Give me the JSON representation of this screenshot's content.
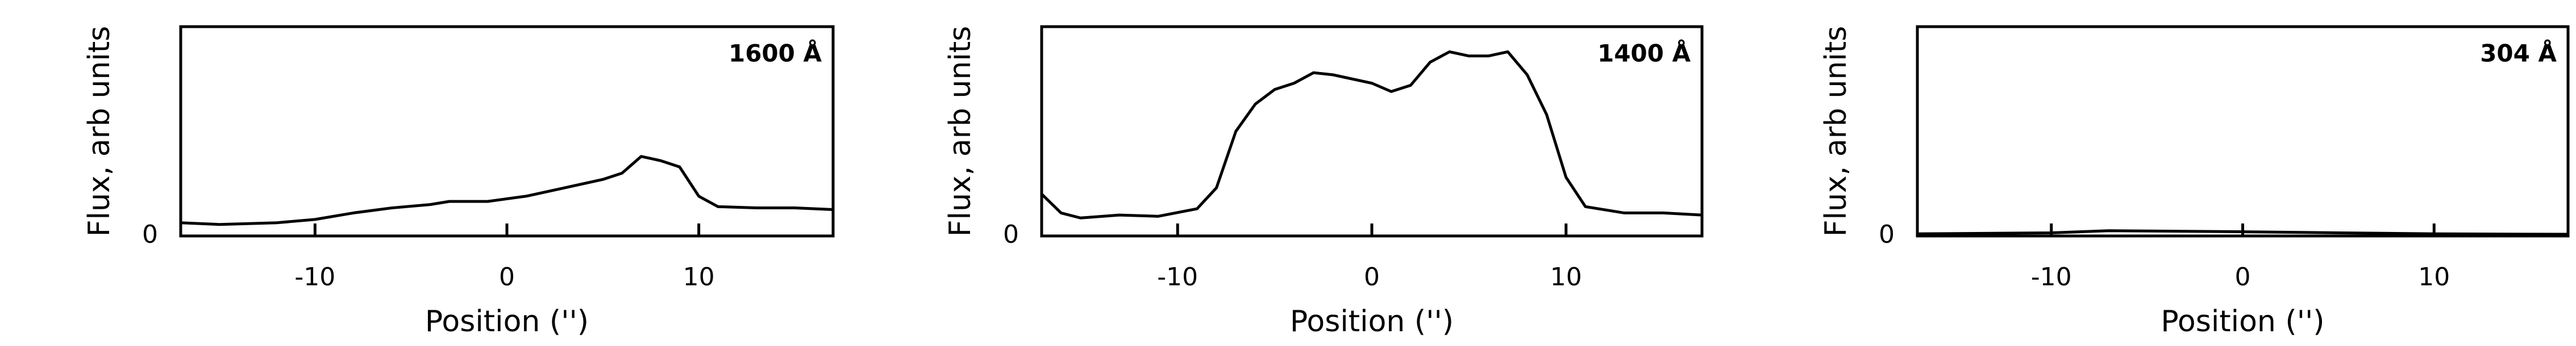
{
  "chart_data": [
    {
      "type": "line",
      "annotation": "1600 Å",
      "xlabel": "Position ('')",
      "ylabel": "Flux, arb units",
      "x": [
        -17,
        -15,
        -12,
        -10,
        -8,
        -6,
        -4,
        -3,
        -1,
        1,
        3,
        5,
        6,
        7,
        8,
        9,
        10,
        11,
        13,
        15,
        17
      ],
      "values": [
        0.063,
        0.055,
        0.063,
        0.079,
        0.11,
        0.134,
        0.15,
        0.165,
        0.165,
        0.19,
        0.23,
        0.27,
        0.3,
        0.38,
        0.36,
        0.33,
        0.19,
        0.14,
        0.134,
        0.134,
        0.126
      ],
      "color": "#000000",
      "xlim": [
        -17,
        17
      ],
      "ylim": [
        0,
        1
      ],
      "xticks": [
        -10,
        0,
        10
      ],
      "yticks": [
        0
      ]
    },
    {
      "type": "line",
      "annotation": "1400 Å",
      "xlabel": "Position ('')",
      "ylabel": "Flux, arb units",
      "x": [
        -17,
        -16,
        -15,
        -13,
        -11,
        -9,
        -8,
        -7,
        -6,
        -5,
        -4,
        -3,
        -2,
        0,
        1,
        2,
        3,
        4,
        5,
        6,
        7,
        8,
        9,
        10,
        11,
        13,
        15,
        17
      ],
      "values": [
        0.2,
        0.11,
        0.086,
        0.1,
        0.094,
        0.13,
        0.23,
        0.5,
        0.63,
        0.7,
        0.73,
        0.78,
        0.77,
        0.73,
        0.69,
        0.72,
        0.83,
        0.88,
        0.86,
        0.86,
        0.88,
        0.77,
        0.58,
        0.28,
        0.14,
        0.11,
        0.11,
        0.1
      ],
      "color": "#000000",
      "xlim": [
        -17,
        17
      ],
      "ylim": [
        0,
        1
      ],
      "xticks": [
        -10,
        0,
        10
      ],
      "yticks": [
        0
      ]
    },
    {
      "type": "line",
      "annotation": "304 Å",
      "xlabel": "Position ('')",
      "ylabel": "Flux, arb units",
      "x": [
        -17,
        -10,
        -7,
        0,
        5,
        10,
        17
      ],
      "values": [
        0.01,
        0.015,
        0.025,
        0.02,
        0.015,
        0.01,
        0.008
      ],
      "color": "#000000",
      "xlim": [
        -17,
        17
      ],
      "ylim": [
        0,
        1
      ],
      "xticks": [
        -10,
        0,
        10
      ],
      "yticks": [
        0
      ]
    }
  ]
}
